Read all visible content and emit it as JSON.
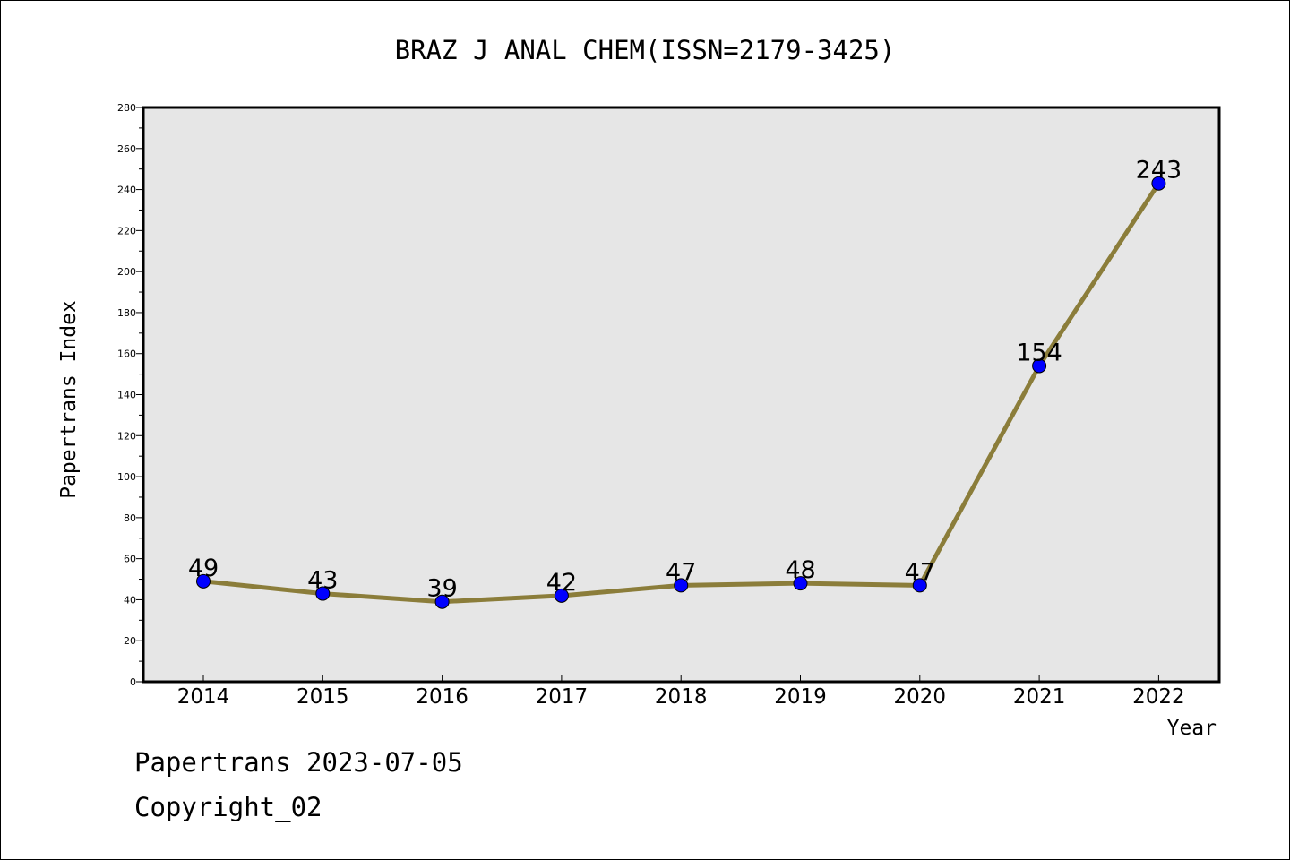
{
  "chart_data": {
    "type": "line",
    "title": "BRAZ J ANAL CHEM(ISSN=2179-3425)",
    "xlabel": "Year",
    "ylabel": "Papertrans Index",
    "categories": [
      "2014",
      "2015",
      "2016",
      "2017",
      "2018",
      "2019",
      "2020",
      "2021",
      "2022"
    ],
    "series": [
      {
        "values": [
          49,
          43,
          39,
          42,
          47,
          48,
          47,
          154,
          243
        ]
      }
    ],
    "data_labels": [
      "49",
      "43",
      "39",
      "42",
      "47",
      "48",
      "47",
      "154",
      "243"
    ],
    "ylim": [
      0,
      280
    ],
    "y_ticks": [
      "0",
      "20",
      "40",
      "60",
      "80",
      "100",
      "120",
      "140",
      "160",
      "180",
      "200",
      "220",
      "240",
      "260",
      "280"
    ],
    "grid": false,
    "colors": {
      "line": "#8B7D3A",
      "marker": "#0000FF",
      "plot_background": "#E6E6E6"
    }
  },
  "footer": {
    "date": "Papertrans 2023-07-05",
    "copyright": "Copyright_02"
  }
}
